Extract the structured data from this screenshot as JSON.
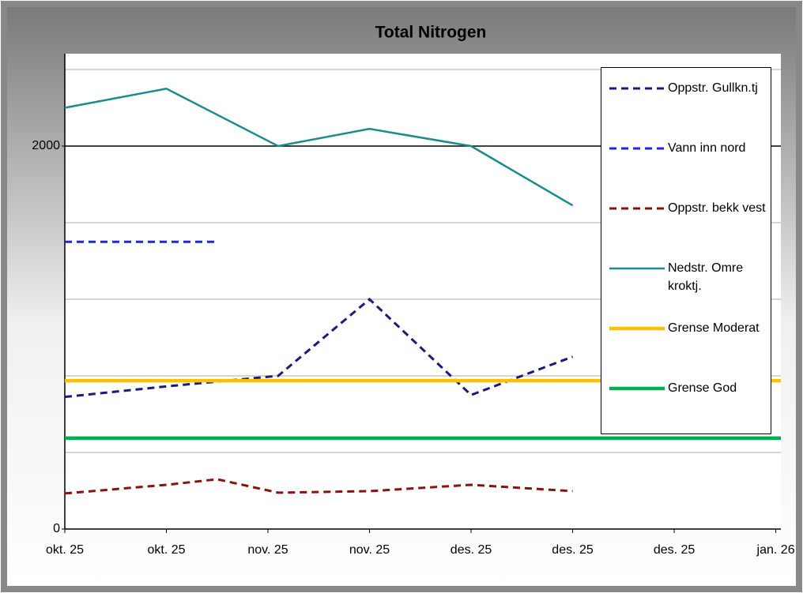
{
  "chart_data": {
    "type": "line",
    "title": "Total Nitrogen",
    "xlim": [
      0,
      7.05
    ],
    "xticks": [
      {
        "value": 0,
        "label": "okt. 25"
      },
      {
        "value": 1,
        "label": "okt. 25"
      },
      {
        "value": 2,
        "label": "nov. 25"
      },
      {
        "value": 3,
        "label": "nov. 25"
      },
      {
        "value": 4,
        "label": "des. 25"
      },
      {
        "value": 5,
        "label": "des. 25"
      },
      {
        "value": 6,
        "label": "des. 25"
      },
      {
        "value": 7,
        "label": "jan. 26"
      }
    ],
    "ylim": [
      0,
      2400
    ],
    "yticks": [
      0,
      2000
    ],
    "gridlines": [
      400,
      800,
      1200,
      1600,
      2000,
      2400
    ],
    "grid": true,
    "series": [
      {
        "name": "Oppstr. Gullkn.tj",
        "color": "#1a1a80",
        "style": "dashed",
        "x": [
          0,
          1,
          2.1,
          3,
          4,
          5
        ],
        "values": [
          690,
          745,
          800,
          1200,
          700,
          900
        ]
      },
      {
        "name": "Vann inn nord",
        "color": "#2020ff",
        "style": "dashed",
        "x": [
          0,
          1.5
        ],
        "values": [
          1500,
          1500
        ]
      },
      {
        "name": "Oppstr. bekk vest",
        "color": "#8b1010",
        "style": "dashed",
        "x": [
          0,
          1,
          1.5,
          2.1,
          3,
          4,
          5
        ],
        "values": [
          186,
          231,
          260,
          190,
          198,
          231,
          198
        ]
      },
      {
        "name": "Nedstr. Omre kroktj.",
        "color": "#1a8c8c",
        "style": "solid",
        "x": [
          0,
          1,
          2.1,
          3,
          4,
          5
        ],
        "values": [
          2200,
          2300,
          2000,
          2090,
          2000,
          1690
        ]
      },
      {
        "name": "Grense Moderat",
        "color": "#ffc000",
        "style": "thick",
        "x": [
          0,
          7.05
        ],
        "values": [
          775,
          775
        ]
      },
      {
        "name": "Grense God",
        "color": "#00b050",
        "style": "thick",
        "x": [
          0,
          7.05
        ],
        "values": [
          475,
          475
        ]
      }
    ]
  }
}
